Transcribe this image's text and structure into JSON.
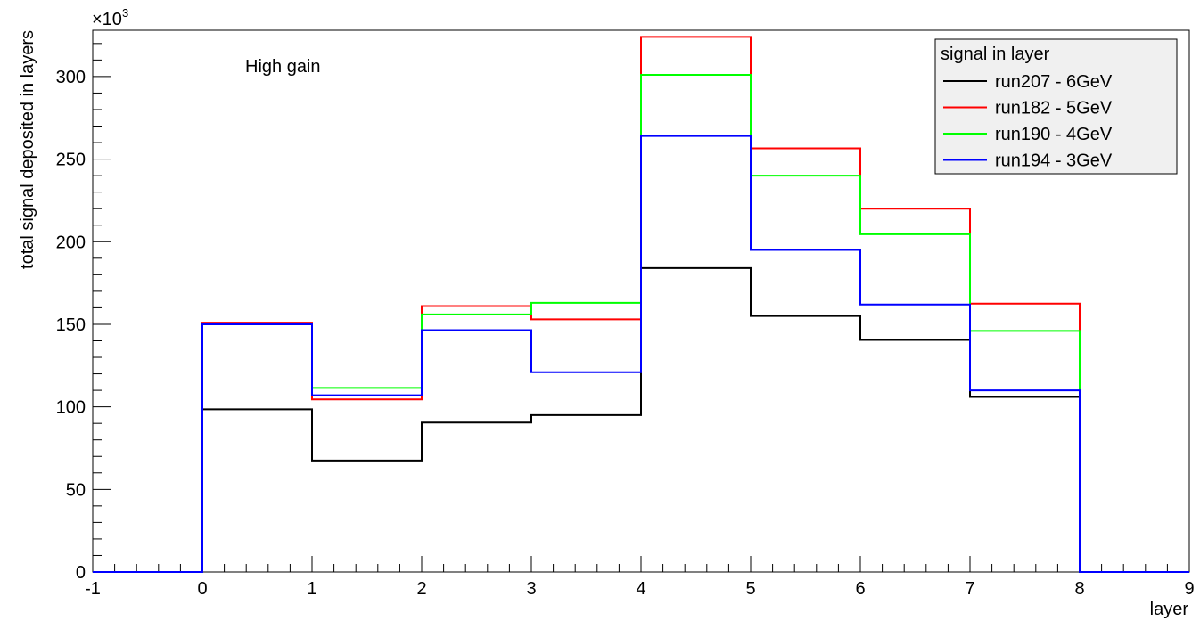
{
  "chart_data": {
    "type": "step-histogram",
    "title": "",
    "annotation": "High gain",
    "xlabel": "layer",
    "ylabel": "total signal deposited in layers",
    "y_exponent_base": "×10",
    "y_exponent_power": "3",
    "xlim": [
      -1,
      9
    ],
    "ylim": [
      0,
      328
    ],
    "x_ticks": [
      "-1",
      "0",
      "1",
      "2",
      "3",
      "4",
      "5",
      "6",
      "7",
      "8",
      "9"
    ],
    "y_ticks": [
      "0",
      "50",
      "100",
      "150",
      "200",
      "250",
      "300"
    ],
    "bin_edges": [
      -1,
      0,
      1,
      2,
      3,
      4,
      5,
      6,
      7,
      8,
      9
    ],
    "legend_title": "signal in layer",
    "legend_position": "top-right",
    "grid": false,
    "series": [
      {
        "name": "run207 - 6GeV",
        "color": "#000000",
        "values": [
          0,
          98.5,
          67.5,
          90.5,
          95,
          184,
          155,
          140.5,
          106,
          0
        ]
      },
      {
        "name": "run182 - 5GeV",
        "color": "#ff0000",
        "values": [
          0,
          151,
          104.5,
          161,
          153,
          324,
          256.5,
          220,
          162.5,
          0
        ]
      },
      {
        "name": "run190 - 4GeV",
        "color": "#00ff00",
        "values": [
          0,
          150,
          111.5,
          156,
          163,
          301,
          240,
          204.5,
          146,
          0
        ]
      },
      {
        "name": "run194 - 3GeV",
        "color": "#0000ff",
        "values": [
          0,
          150,
          107,
          146.5,
          121,
          264,
          195,
          162,
          110,
          0
        ]
      }
    ]
  }
}
